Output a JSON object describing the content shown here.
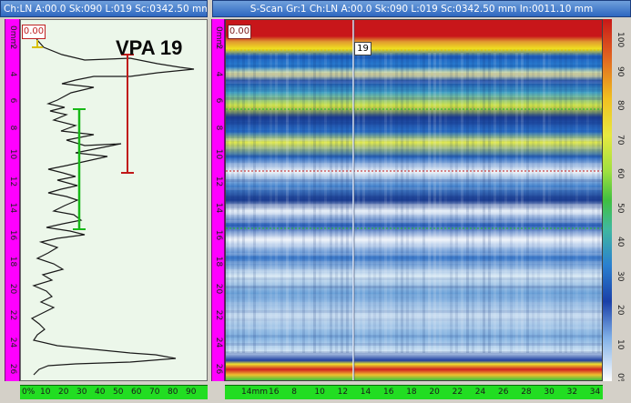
{
  "left_panel": {
    "title": "Ch:LN A:00.0 Sk:090 L:019 Sc:0342.50 mm In:",
    "gate_value": "0.00",
    "overlay_label": "VPA 19",
    "depth_unit": "0mm",
    "depth_ticks": [
      "2",
      "4",
      "6",
      "8",
      "10",
      "12",
      "14",
      "16",
      "18",
      "20",
      "22",
      "24",
      "26"
    ],
    "amp_ticks": [
      "0%",
      "10",
      "20",
      "30",
      "40",
      "50",
      "60",
      "70",
      "80",
      "90"
    ]
  },
  "right_panel": {
    "title": "S-Scan Gr:1 Ch:LN A:00.0 Sk:090 L:019 Sc:0342.50 mm In:0011.10 mm",
    "gate_value": "0.00",
    "cursor_label": "19",
    "depth_unit": "0mm",
    "depth_ticks": [
      "2",
      "4",
      "6",
      "8",
      "10",
      "12",
      "14",
      "16",
      "18",
      "20",
      "22",
      "24",
      "26"
    ],
    "scan_unit": "14mm",
    "scan_ticks": [
      "16",
      "8",
      "10",
      "12",
      "14",
      "16",
      "18",
      "20",
      "22",
      "24",
      "26",
      "28",
      "30",
      "32",
      "34"
    ]
  },
  "color_scale": {
    "ticks": [
      "100",
      "90",
      "80",
      "70",
      "60",
      "50",
      "40",
      "30",
      "20",
      "10",
      "0%"
    ]
  },
  "colors": {
    "gate_red": "#c01818",
    "gate_green": "#18b818",
    "gate_yellow": "#d8c000",
    "ruler_magenta": "#ff00ff",
    "ruler_green": "#22dd22",
    "title_blue": "#2e67c0"
  }
}
